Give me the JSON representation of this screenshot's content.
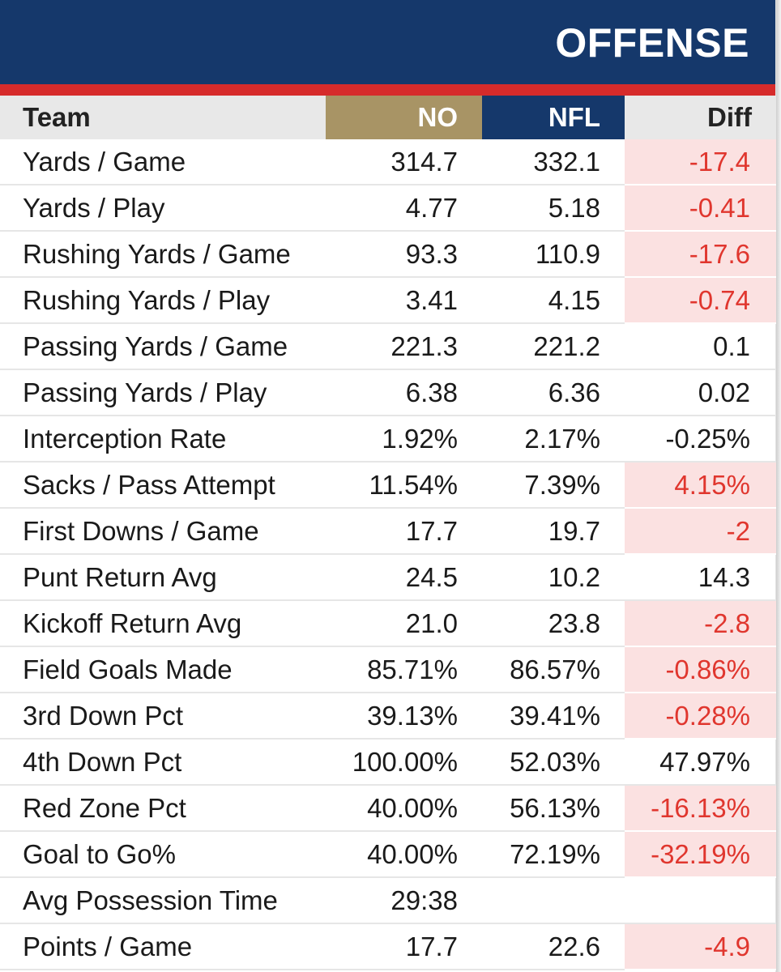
{
  "header": {
    "title": "OFFENSE"
  },
  "columns": {
    "team": "Team",
    "no": "NO",
    "nfl": "NFL",
    "diff": "Diff"
  },
  "colors": {
    "banner": "#15386b",
    "accent_red": "#d62b2b",
    "saints_gold": "#a89465",
    "negative_bg": "#fbe1e1",
    "negative_text": "#e0362e"
  },
  "rows": [
    {
      "label": "Yards / Game",
      "no": "314.7",
      "nfl": "332.1",
      "diff": "-17.4",
      "negative": true
    },
    {
      "label": "Yards / Play",
      "no": "4.77",
      "nfl": "5.18",
      "diff": "-0.41",
      "negative": true
    },
    {
      "label": "Rushing Yards / Game",
      "no": "93.3",
      "nfl": "110.9",
      "diff": "-17.6",
      "negative": true
    },
    {
      "label": "Rushing Yards / Play",
      "no": "3.41",
      "nfl": "4.15",
      "diff": "-0.74",
      "negative": true
    },
    {
      "label": "Passing Yards / Game",
      "no": "221.3",
      "nfl": "221.2",
      "diff": "0.1",
      "negative": false
    },
    {
      "label": "Passing Yards / Play",
      "no": "6.38",
      "nfl": "6.36",
      "diff": "0.02",
      "negative": false
    },
    {
      "label": "Interception Rate",
      "no": "1.92%",
      "nfl": "2.17%",
      "diff": "-0.25%",
      "negative": false
    },
    {
      "label": "Sacks / Pass Attempt",
      "no": "11.54%",
      "nfl": "7.39%",
      "diff": "4.15%",
      "negative": true
    },
    {
      "label": "First Downs / Game",
      "no": "17.7",
      "nfl": "19.7",
      "diff": "-2",
      "negative": true
    },
    {
      "label": "Punt Return Avg",
      "no": "24.5",
      "nfl": "10.2",
      "diff": "14.3",
      "negative": false
    },
    {
      "label": "Kickoff Return Avg",
      "no": "21.0",
      "nfl": "23.8",
      "diff": "-2.8",
      "negative": true
    },
    {
      "label": "Field Goals Made",
      "no": "85.71%",
      "nfl": "86.57%",
      "diff": "-0.86%",
      "negative": true
    },
    {
      "label": "3rd Down Pct",
      "no": "39.13%",
      "nfl": "39.41%",
      "diff": "-0.28%",
      "negative": true
    },
    {
      "label": "4th Down Pct",
      "no": "100.00%",
      "nfl": "52.03%",
      "diff": "47.97%",
      "negative": false
    },
    {
      "label": "Red Zone Pct",
      "no": "40.00%",
      "nfl": "56.13%",
      "diff": "-16.13%",
      "negative": true
    },
    {
      "label": "Goal to Go%",
      "no": "40.00%",
      "nfl": "72.19%",
      "diff": "-32.19%",
      "negative": true
    },
    {
      "label": "Avg Possession Time",
      "no": "29:38",
      "nfl": "",
      "diff": "",
      "negative": false
    },
    {
      "label": "Points / Game",
      "no": "17.7",
      "nfl": "22.6",
      "diff": "-4.9",
      "negative": true
    }
  ]
}
